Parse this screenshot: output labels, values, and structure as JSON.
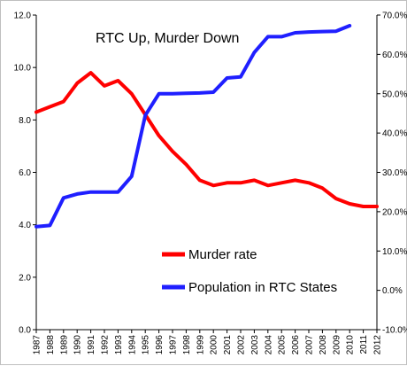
{
  "chart_data": {
    "type": "line",
    "title": "RTC Up, Murder Down",
    "xlabel": "",
    "ylabel": "",
    "x": [
      "1987",
      "1988",
      "1989",
      "1990",
      "1991",
      "1992",
      "1993",
      "1994",
      "1995",
      "1996",
      "1997",
      "1998",
      "1999",
      "2000",
      "2001",
      "2002",
      "2003",
      "2004",
      "2005",
      "2006",
      "2007",
      "2008",
      "2009",
      "2010",
      "2011",
      "2012"
    ],
    "left_axis": {
      "ylim": [
        0.0,
        12.0
      ],
      "ticks": [
        "0.0",
        "2.0",
        "4.0",
        "6.0",
        "8.0",
        "10.0",
        "12.0"
      ]
    },
    "right_axis": {
      "ylim": [
        -10,
        70
      ],
      "ticks": [
        "-10.0%",
        "0.0%",
        "10.0%",
        "20.0%",
        "30.0%",
        "40.0%",
        "50.0%",
        "60.0%",
        "70.0%"
      ]
    },
    "series": [
      {
        "name": "Murder rate",
        "axis": "left",
        "color": "#ff0000",
        "values": [
          8.3,
          8.5,
          8.7,
          9.4,
          9.8,
          9.3,
          9.5,
          9.0,
          8.2,
          7.4,
          6.8,
          6.3,
          5.7,
          5.5,
          5.6,
          5.6,
          5.7,
          5.5,
          5.6,
          5.7,
          5.6,
          5.4,
          5.0,
          4.8,
          4.7,
          4.7
        ]
      },
      {
        "name": "Population in RTC States",
        "axis": "right",
        "color": "#1f1fff",
        "values": [
          16.2,
          16.5,
          23.5,
          24.5,
          25.0,
          25.0,
          25.0,
          29.0,
          44.5,
          50.0,
          50.0,
          50.1,
          50.2,
          50.4,
          54.0,
          54.3,
          60.5,
          64.5,
          64.5,
          65.5,
          65.7,
          65.8,
          65.9,
          67.3,
          null,
          null
        ]
      }
    ],
    "grid": false,
    "legend": {
      "placement": "lower-right",
      "entries": [
        "Murder rate",
        "Population in RTC States"
      ]
    }
  }
}
